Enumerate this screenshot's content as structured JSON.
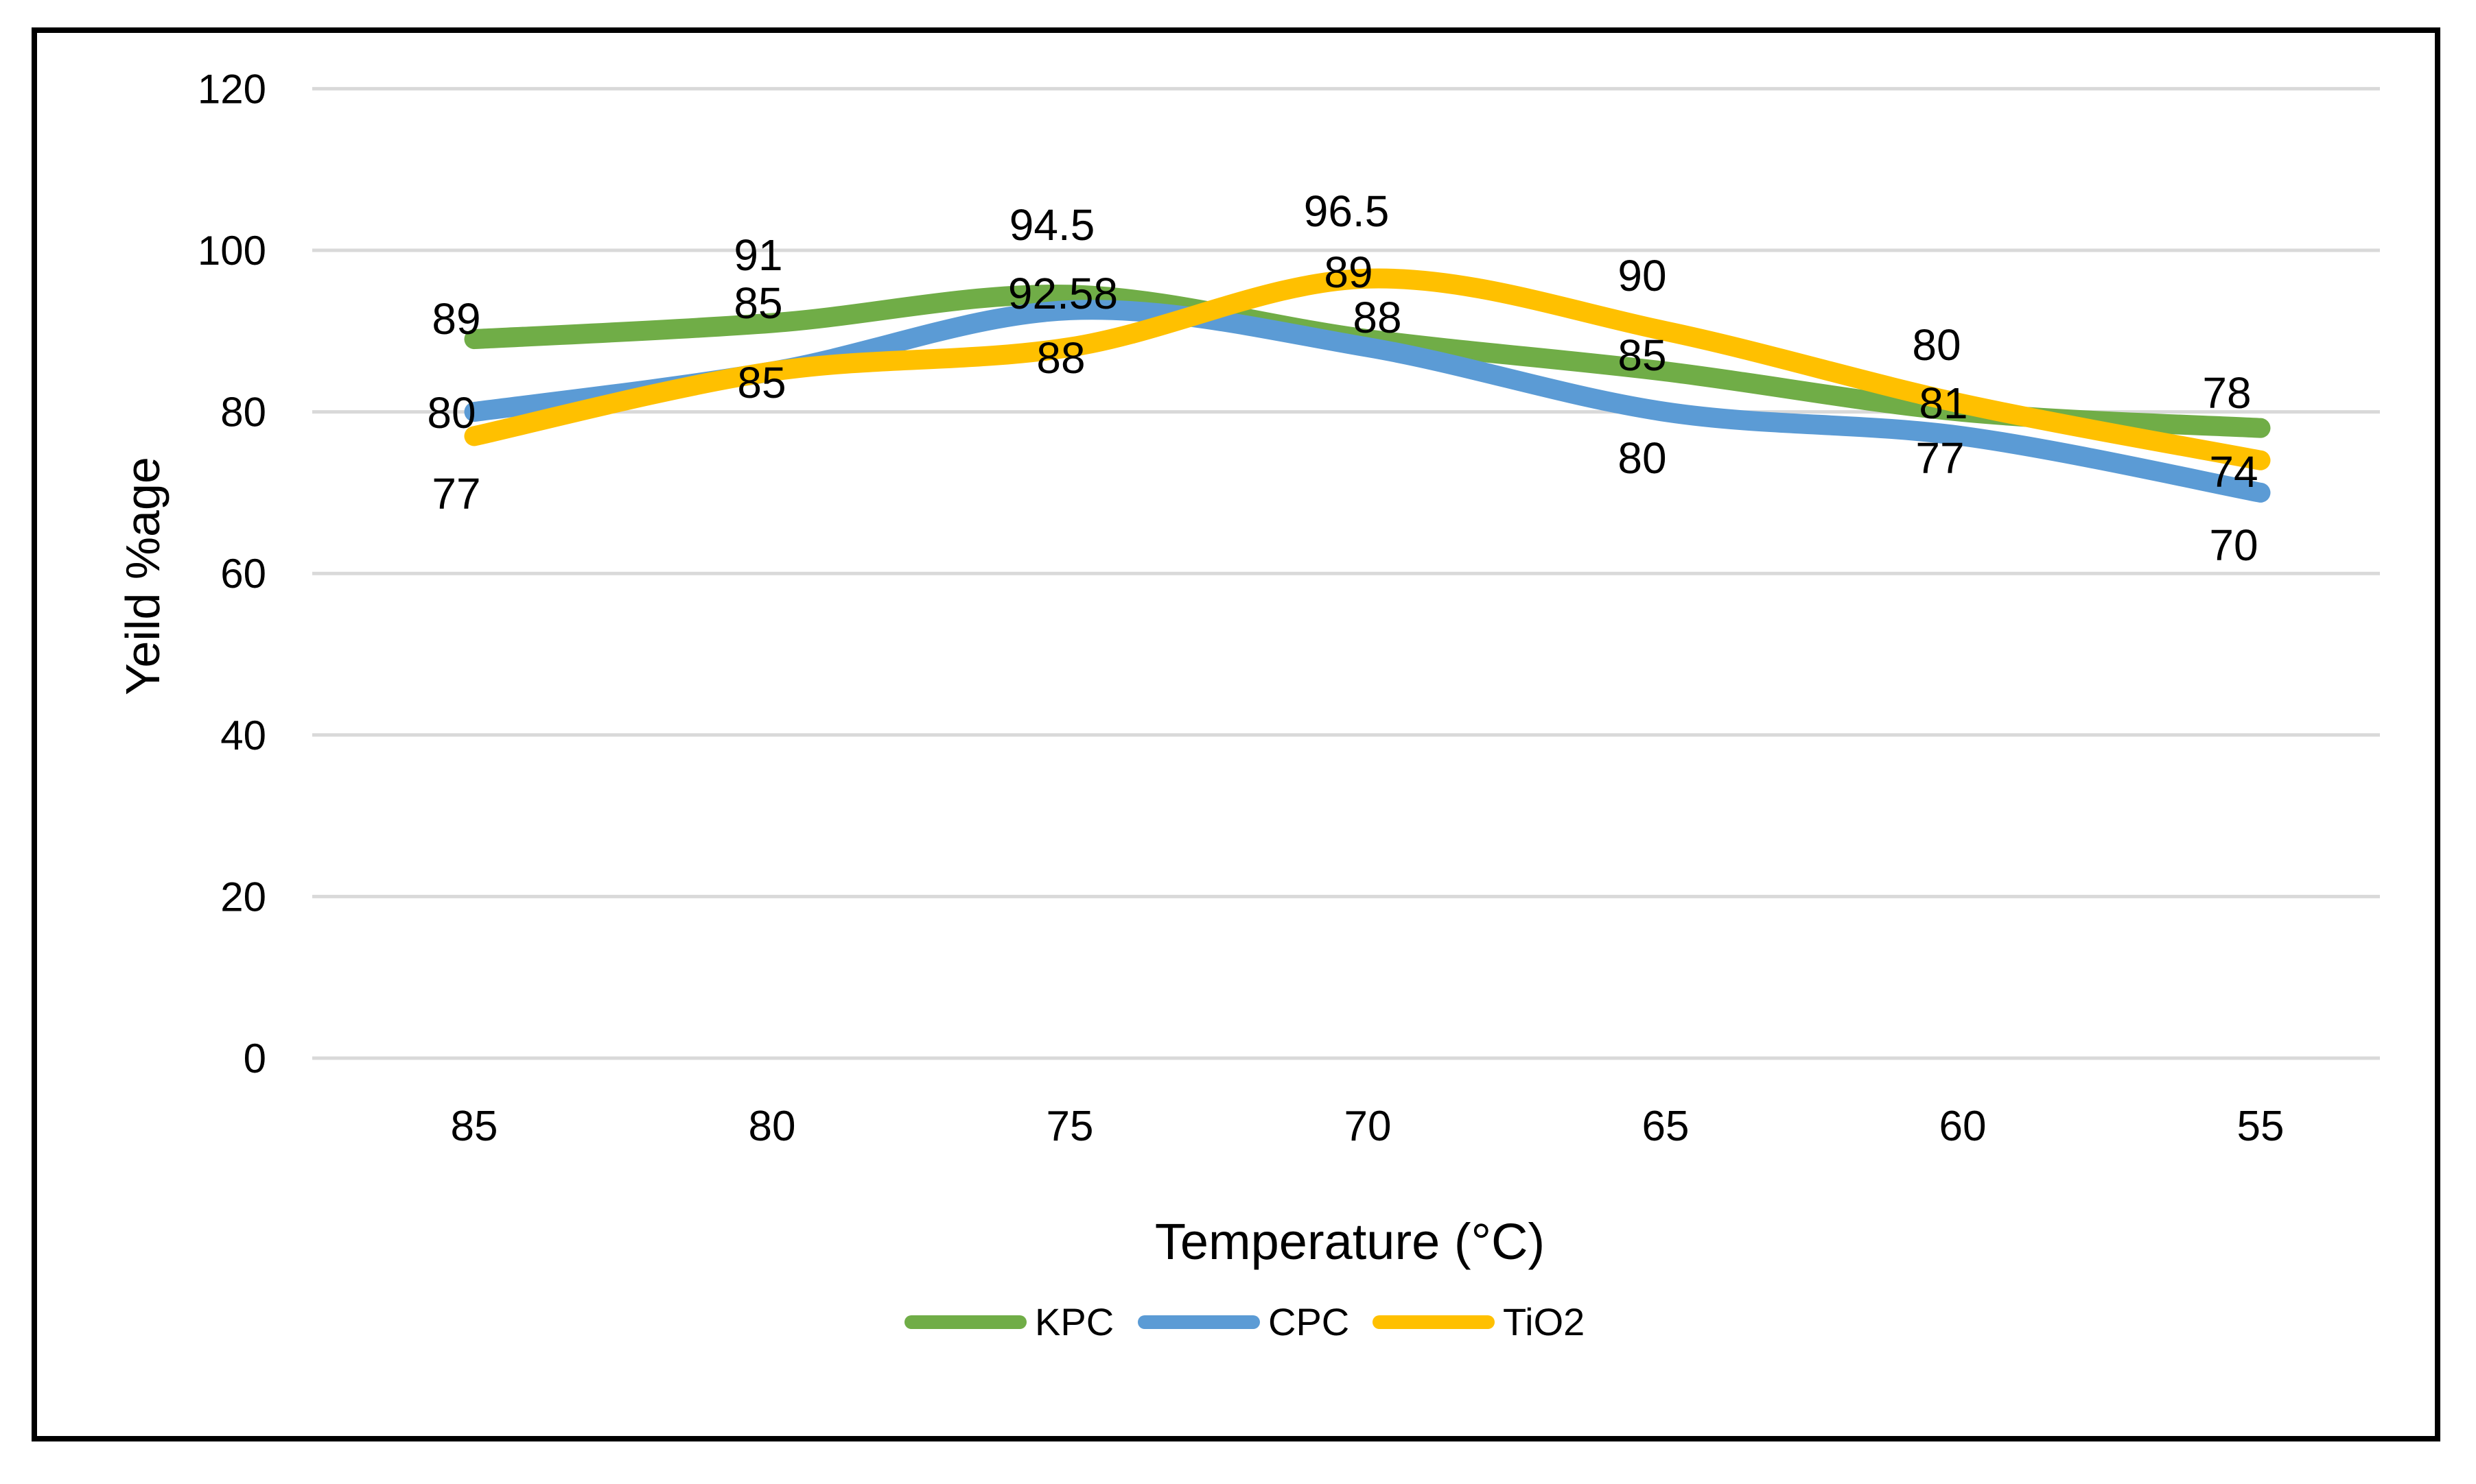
{
  "chart_data": {
    "type": "line",
    "title": "",
    "xlabel": "Temperature (°C)",
    "ylabel": "Yeild %age",
    "categories": [
      "85",
      "80",
      "75",
      "70",
      "65",
      "60",
      "55"
    ],
    "yticks": [
      120,
      100,
      80,
      60,
      40,
      20,
      0
    ],
    "ylim": [
      0,
      120
    ],
    "grid": "horizontal",
    "legend_position": "bottom",
    "smooth_lines": true,
    "gridline_color": "#D9D9D9",
    "text_color": "#000000",
    "border_color": "#000000",
    "background": "#FFFFFF",
    "series": [
      {
        "name": "KPC",
        "color": "#70AD47",
        "values": [
          89,
          91,
          94.5,
          89,
          85,
          80,
          78
        ],
        "label_xy": [
          [
            665,
            465
          ],
          [
            1105,
            372
          ],
          [
            1533,
            328
          ],
          [
            1965,
            397
          ],
          [
            2393,
            518
          ],
          [
            2822,
            503
          ],
          [
            3245,
            573
          ]
        ]
      },
      {
        "name": "CPC",
        "color": "#5B9BD5",
        "values": [
          80,
          85,
          92.58,
          88,
          80,
          77,
          70
        ],
        "label_xy": [
          [
            658,
            602
          ],
          [
            1105,
            442
          ],
          [
            1549,
            428
          ],
          [
            2007,
            463
          ],
          [
            2393,
            668
          ],
          [
            2827,
            668
          ],
          [
            3255,
            795
          ]
        ]
      },
      {
        "name": "TiO2",
        "color": "#FFC000",
        "values": [
          77,
          85,
          88,
          96.5,
          90,
          81,
          74
        ],
        "label_xy": [
          [
            665,
            720
          ],
          [
            1110,
            558
          ],
          [
            1546,
            522
          ],
          [
            1962,
            308
          ],
          [
            2393,
            402
          ],
          [
            2832,
            588
          ],
          [
            3255,
            688
          ]
        ]
      }
    ]
  }
}
